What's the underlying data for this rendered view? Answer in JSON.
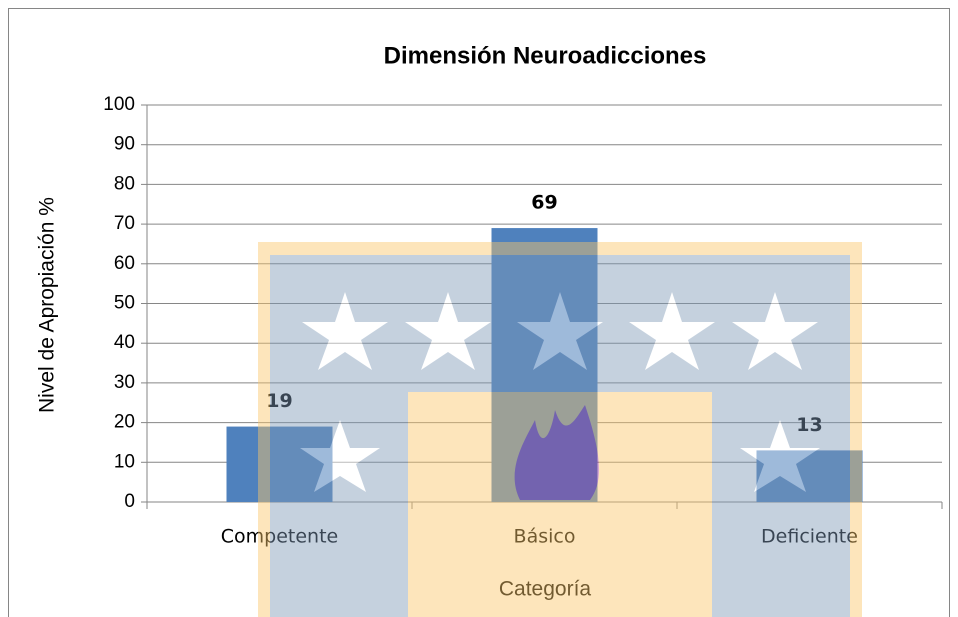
{
  "chart_data": {
    "type": "bar",
    "title": "Dimensión Neuroadicciones",
    "y_label": "Nivel de Apropiación %",
    "x_label": "Categoría",
    "categories": [
      "Competente",
      "Básico",
      "Deficiente"
    ],
    "values": [
      19,
      69,
      13
    ],
    "color": "#4f81bd",
    "ylim": [
      0,
      100
    ],
    "yticks": [
      0,
      10,
      20,
      30,
      40,
      50,
      60,
      70,
      80,
      90,
      100
    ],
    "grid": true
  }
}
